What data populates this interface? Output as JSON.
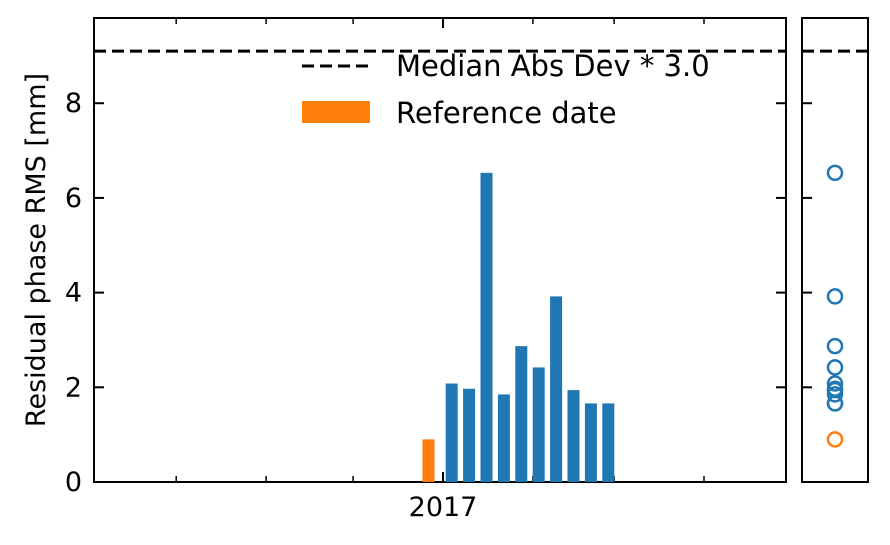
{
  "chart_data": {
    "type": "bar",
    "ylabel": "Residual phase RMS [mm]",
    "xlabel": "",
    "ylim": [
      0,
      9.8
    ],
    "yticks": [
      "0",
      "2",
      "4",
      "6",
      "8"
    ],
    "xticks": [
      "2017"
    ],
    "threshold": {
      "value": 9.1,
      "label": "Median Abs Dev * 3.0"
    },
    "legend_position": "top-right",
    "reference": {
      "x": "2016-12-27",
      "value": 0.9,
      "label": "Reference date"
    },
    "series": [
      {
        "x": [
          "2017-01-04",
          "2017-01-10",
          "2017-01-16",
          "2017-01-22",
          "2017-01-28",
          "2017-02-03",
          "2017-02-09",
          "2017-02-15",
          "2017-02-21",
          "2017-02-27"
        ],
        "values": [
          2.08,
          1.97,
          6.53,
          1.85,
          2.87,
          2.42,
          3.92,
          1.94,
          1.66,
          1.66
        ]
      }
    ],
    "colors": {
      "bars": "#1f77b4",
      "reference": "#ff7f0e",
      "threshold": "#000000"
    },
    "side_panel": {
      "type": "scatter",
      "marker": "open-circle"
    }
  }
}
